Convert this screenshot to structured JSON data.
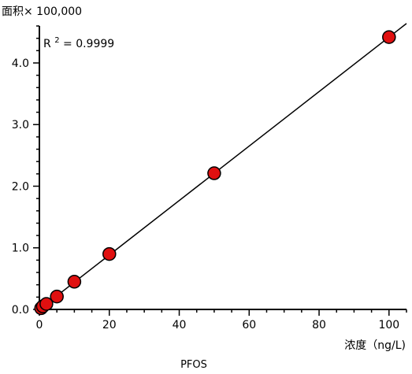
{
  "chart_data": {
    "type": "scatter",
    "caption": "PFOS",
    "ylabel": "面积× 100,000",
    "xlabel": "浓度（ng/L)",
    "annotation": {
      "r_label": "R",
      "r_sup": "2",
      "r_value": " = 0.9999"
    },
    "xlim": [
      0,
      105
    ],
    "ylim": [
      0,
      4.6
    ],
    "x_ticks": [
      0,
      20,
      40,
      60,
      80,
      100
    ],
    "x_tick_labels": [
      "0",
      "20",
      "40",
      "60",
      "80",
      "100"
    ],
    "y_ticks": [
      0,
      1,
      2,
      3,
      4
    ],
    "y_tick_labels": [
      "0.0",
      "1.0",
      "2.0",
      "3.0",
      "4.0"
    ],
    "series": [
      {
        "x": [
          0.5,
          1,
          2,
          5,
          10,
          20,
          50,
          100
        ],
        "y": [
          0.02,
          0.05,
          0.09,
          0.21,
          0.45,
          0.9,
          2.21,
          4.42
        ],
        "marker_color": "#e01010",
        "marker_edge": "#000000"
      }
    ],
    "fit_line": {
      "x": [
        0,
        105
      ],
      "y": [
        0.0,
        4.64
      ],
      "color": "#000000"
    },
    "grid": false
  }
}
